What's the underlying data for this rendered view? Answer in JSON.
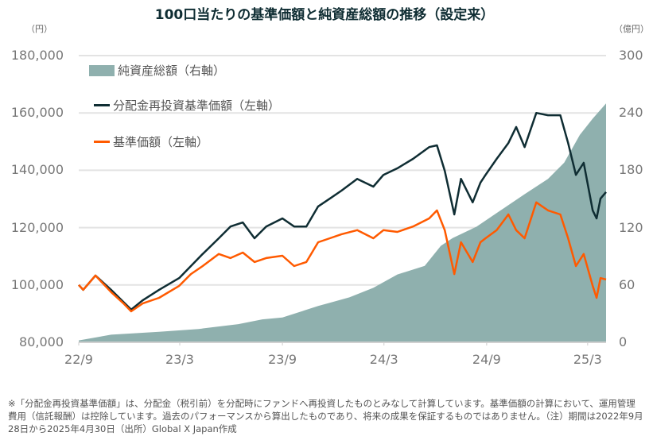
{
  "title": "100口当たりの基準価額と純資産総額の推移（設定来）",
  "left_unit": "（円）",
  "right_unit": "（億円）",
  "note": "※「分配金再投資基準価額」は、分配金（税引前）を分配時にファンドへ再投資したものとみなして計算しています。基準価額の計算において、運用管理費用（信託報酬）は控除しています。過去のパフォーマンスから算出したものであり、将来の成果を保証するものではありません。（注）期間は2022年9月28日から2025年4月30日（出所）Global X Japan作成",
  "chart_data": {
    "type": "line",
    "title": "100口当たりの基準価額と純資産総額の推移（設定来）",
    "x_range": [
      "2022-09-28",
      "2025-04-30"
    ],
    "x_ticks": [
      {
        "label": "22/9",
        "date": "2022-09-28"
      },
      {
        "label": "23/3",
        "date": "2023-03-28"
      },
      {
        "label": "23/9",
        "date": "2023-09-28"
      },
      {
        "label": "24/3",
        "date": "2024-03-28"
      },
      {
        "label": "24/9",
        "date": "2024-09-28"
      },
      {
        "label": "25/3",
        "date": "2025-03-28"
      }
    ],
    "y_left": {
      "unit": "（円）",
      "range": [
        80000,
        180000
      ],
      "ticks": [
        "80,000",
        "100,000",
        "120,000",
        "140,000",
        "160,000",
        "180,000"
      ]
    },
    "y_right": {
      "unit": "（億円）",
      "range": [
        0,
        300
      ],
      "ticks": [
        "0",
        "60",
        "120",
        "180",
        "240",
        "300"
      ]
    },
    "grid": true,
    "legend_position": "top-left",
    "series": [
      {
        "name": "純資産総額（右軸）",
        "kind": "area",
        "axis": "right",
        "color": "#8fb0ae",
        "x": [
          "2022-09-28",
          "2022-11-25",
          "2023-02-19",
          "2023-05-01",
          "2023-07-11",
          "2023-08-23",
          "2023-09-28",
          "2023-12-01",
          "2024-01-26",
          "2024-03-09",
          "2024-04-21",
          "2024-06-09",
          "2024-07-08",
          "2024-07-29",
          "2024-09-10",
          "2024-10-23",
          "2024-12-05",
          "2025-01-16",
          "2025-02-14",
          "2025-03-14",
          "2025-04-06",
          "2025-04-30"
        ],
        "values": [
          2,
          8,
          11,
          14,
          19,
          24,
          26,
          38,
          47,
          57,
          71,
          80,
          101,
          109,
          121,
          138,
          155,
          171,
          188,
          217,
          234,
          250
        ]
      },
      {
        "name": "分配金再投資基準価額（左軸）",
        "kind": "line",
        "axis": "left",
        "color": "#0f2d33",
        "x": [
          "2022-09-28",
          "2022-10-06",
          "2022-10-28",
          "2022-11-25",
          "2022-12-17",
          "2022-12-31",
          "2023-01-21",
          "2023-02-19",
          "2023-03-27",
          "2023-04-17",
          "2023-05-08",
          "2023-06-06",
          "2023-06-27",
          "2023-07-19",
          "2023-08-09",
          "2023-08-30",
          "2023-09-28",
          "2023-10-19",
          "2023-11-10",
          "2023-12-01",
          "2023-12-22",
          "2024-01-12",
          "2024-02-09",
          "2024-03-09",
          "2024-03-27",
          "2024-04-21",
          "2024-05-19",
          "2024-06-17",
          "2024-07-01",
          "2024-07-15",
          "2024-08-01",
          "2024-08-13",
          "2024-09-03",
          "2024-09-17",
          "2024-09-26",
          "2024-10-16",
          "2024-11-06",
          "2024-11-20",
          "2024-12-05",
          "2024-12-26",
          "2025-01-16",
          "2025-02-07",
          "2025-02-21",
          "2025-03-07",
          "2025-03-21",
          "2025-04-06",
          "2025-04-13",
          "2025-04-20",
          "2025-04-30"
        ],
        "values": [
          100000,
          98300,
          103300,
          98300,
          94100,
          91400,
          94700,
          98300,
          102400,
          106600,
          110800,
          116300,
          120400,
          121800,
          116300,
          120400,
          123200,
          120400,
          120400,
          127400,
          130100,
          132900,
          137000,
          134300,
          138400,
          140700,
          144000,
          148100,
          148700,
          139800,
          124600,
          137000,
          128800,
          135700,
          138400,
          144000,
          149500,
          155100,
          148100,
          160000,
          159200,
          159200,
          149500,
          138400,
          142600,
          126000,
          123200,
          130100,
          132400
        ]
      },
      {
        "name": "基準価額（左軸）",
        "kind": "line",
        "axis": "left",
        "color": "#ff5a00",
        "x": [
          "2022-09-28",
          "2022-10-06",
          "2022-10-28",
          "2022-11-25",
          "2022-12-17",
          "2022-12-31",
          "2023-01-21",
          "2023-02-19",
          "2023-03-27",
          "2023-04-17",
          "2023-05-08",
          "2023-06-06",
          "2023-06-27",
          "2023-07-19",
          "2023-08-09",
          "2023-08-30",
          "2023-09-28",
          "2023-10-19",
          "2023-11-10",
          "2023-12-01",
          "2023-12-22",
          "2024-01-12",
          "2024-02-09",
          "2024-03-09",
          "2024-03-27",
          "2024-04-21",
          "2024-05-19",
          "2024-06-17",
          "2024-07-01",
          "2024-07-15",
          "2024-08-01",
          "2024-08-13",
          "2024-09-03",
          "2024-09-17",
          "2024-09-26",
          "2024-10-16",
          "2024-11-06",
          "2024-11-20",
          "2024-12-05",
          "2024-12-26",
          "2025-01-16",
          "2025-02-07",
          "2025-02-21",
          "2025-03-07",
          "2025-03-21",
          "2025-04-06",
          "2025-04-13",
          "2025-04-20",
          "2025-04-30"
        ],
        "values": [
          100000,
          98300,
          103300,
          97500,
          93600,
          90800,
          93600,
          95500,
          99700,
          103800,
          106600,
          110800,
          109400,
          111300,
          108000,
          109400,
          110200,
          106600,
          108000,
          114900,
          116300,
          117700,
          119100,
          116300,
          119100,
          118500,
          120400,
          123200,
          126000,
          119100,
          103800,
          114900,
          108000,
          114900,
          116300,
          119100,
          124600,
          119100,
          116300,
          128800,
          126000,
          124600,
          116300,
          106600,
          110800,
          99700,
          95500,
          102400,
          101900
        ]
      }
    ]
  }
}
